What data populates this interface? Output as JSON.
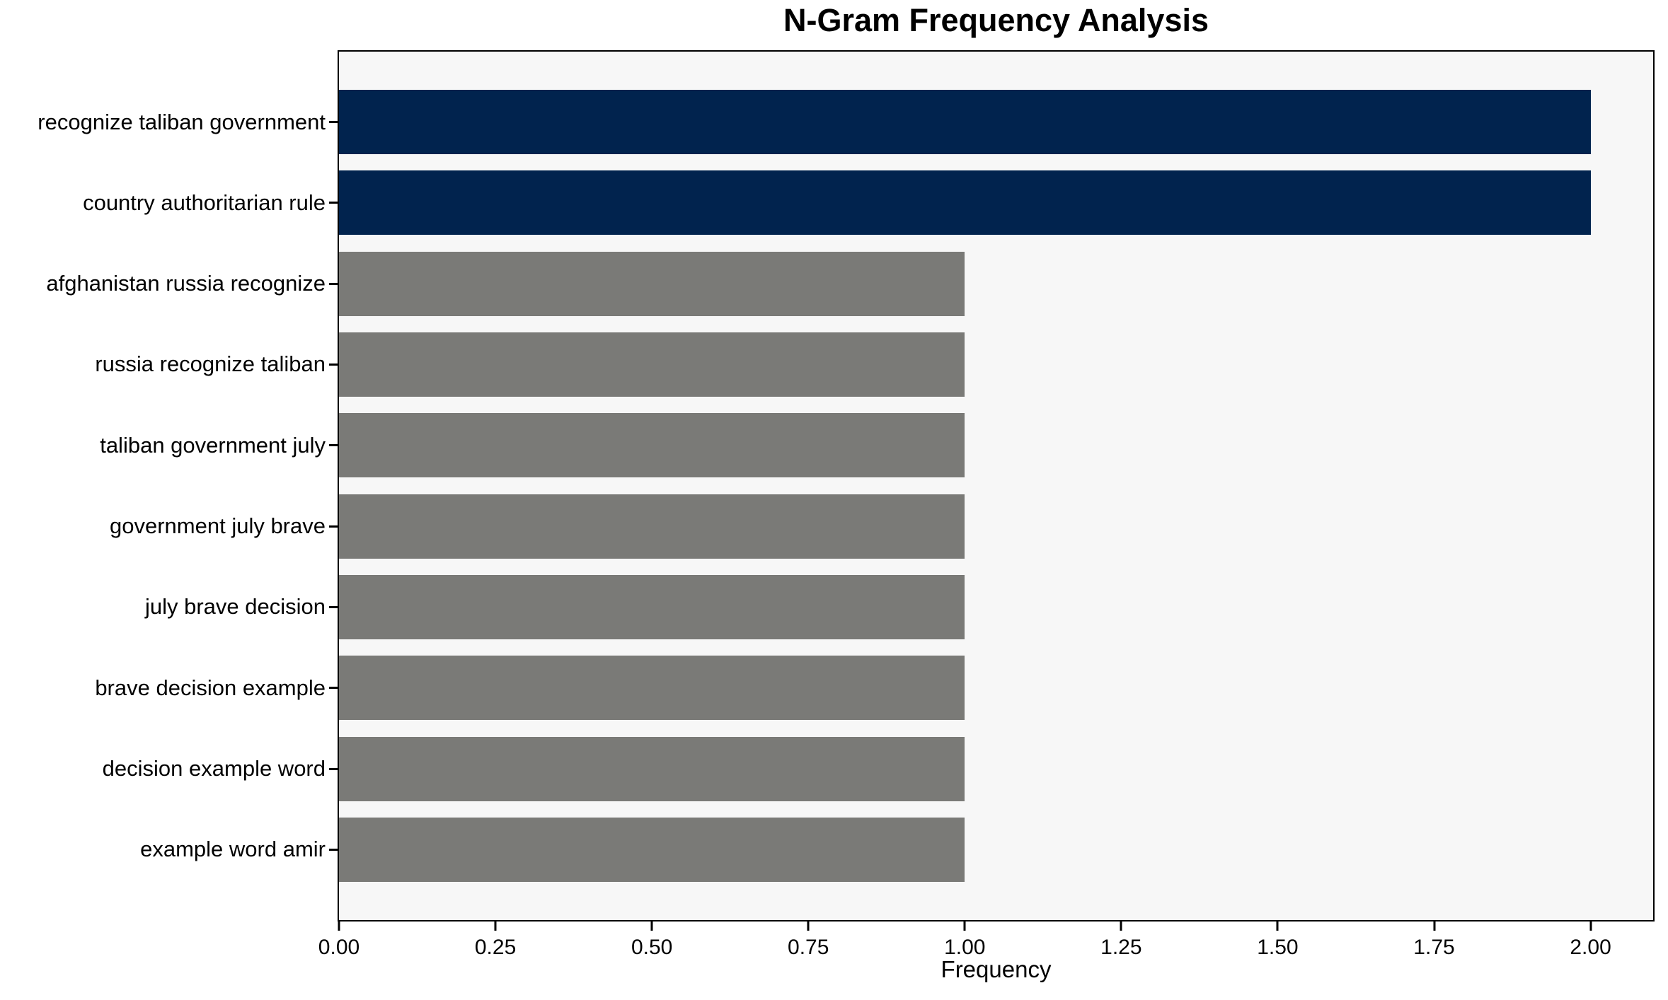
{
  "chart_data": {
    "type": "bar",
    "orientation": "horizontal",
    "title": "N-Gram Frequency Analysis",
    "xlabel": "Frequency",
    "ylabel": "",
    "categories": [
      "recognize taliban government",
      "country authoritarian rule",
      "afghanistan russia recognize",
      "russia recognize taliban",
      "taliban government july",
      "government july brave",
      "july brave decision",
      "brave decision example",
      "decision example word",
      "example word amir"
    ],
    "values": [
      2,
      2,
      1,
      1,
      1,
      1,
      1,
      1,
      1,
      1
    ],
    "bar_colors": [
      "#01234e",
      "#01234e",
      "#7a7a77",
      "#7a7a77",
      "#7a7a77",
      "#7a7a77",
      "#7a7a77",
      "#7a7a77",
      "#7a7a77",
      "#7a7a77"
    ],
    "xlim": [
      0,
      2.1
    ],
    "xticks": [
      0,
      0.25,
      0.5,
      0.75,
      1.0,
      1.25,
      1.5,
      1.75,
      2.0
    ],
    "xtick_labels": [
      "0.00",
      "0.25",
      "0.50",
      "0.75",
      "1.00",
      "1.25",
      "1.50",
      "1.75",
      "2.00"
    ],
    "grid": false,
    "legend": null,
    "plot_background": "#f7f7f7",
    "highlight_color": "#01234e",
    "default_color": "#7a7a77"
  }
}
